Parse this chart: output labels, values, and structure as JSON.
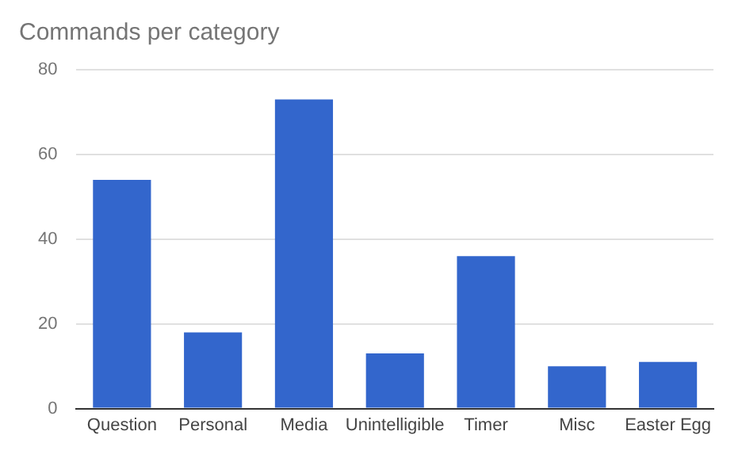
{
  "chart_data": {
    "type": "bar",
    "title": "Commands per category",
    "categories": [
      "Question",
      "Personal",
      "Media",
      "Unintelligible",
      "Timer",
      "Misc",
      "Easter Egg"
    ],
    "values": [
      54,
      18,
      73,
      13,
      36,
      10,
      11
    ],
    "color": "#3366cc",
    "ylim": [
      0,
      80
    ],
    "yticks": [
      0,
      20,
      40,
      60,
      80
    ],
    "grid": "y"
  }
}
